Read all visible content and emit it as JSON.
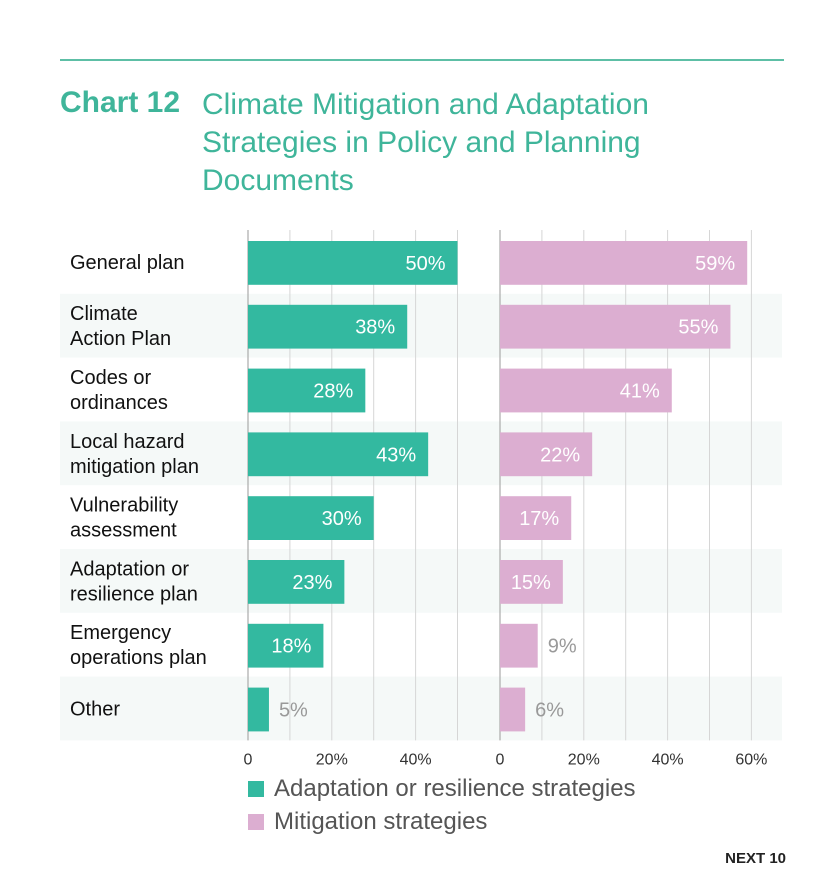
{
  "header": {
    "chart_number": "Chart 12",
    "title": "Climate Mitigation and Adaptation Strategies in Policy and Planning Documents"
  },
  "chart_data": {
    "type": "bar",
    "orientation": "horizontal",
    "categories": [
      "General plan",
      "Climate\nAction  Plan",
      "Codes or\nordinances",
      "Local hazard\nmitigation plan",
      "Vulnerability\nassessment",
      "Adaptation or\nresilience plan",
      "Emergency\noperations plan",
      "Other"
    ],
    "series": [
      {
        "name": "Adaptation or resilience strategies",
        "color": "#33b9a0",
        "values": [
          50,
          38,
          28,
          43,
          30,
          23,
          18,
          5
        ],
        "labels": [
          "50%",
          "38%",
          "28%",
          "43%",
          "30%",
          "23%",
          "18%",
          "5%"
        ],
        "ticks": [
          "0",
          "20%",
          "40%"
        ],
        "xlim": [
          0,
          50
        ]
      },
      {
        "name": "Mitigation strategies",
        "color": "#dcaed1",
        "values": [
          59,
          55,
          41,
          22,
          17,
          15,
          9,
          6
        ],
        "labels": [
          "59%",
          "55%",
          "41%",
          "22%",
          "17%",
          "15%",
          "9%",
          "6%"
        ],
        "ticks": [
          "0",
          "20%",
          "40%",
          "60%"
        ],
        "xlim": [
          0,
          67
        ]
      }
    ],
    "legend_position": "bottom",
    "grid": true
  },
  "legend": [
    {
      "label": "Adaptation or resilience strategies",
      "color": "#33b9a0"
    },
    {
      "label": "Mitigation strategies",
      "color": "#dcaed1"
    }
  ],
  "footer": {
    "text": "NEXT 10"
  }
}
